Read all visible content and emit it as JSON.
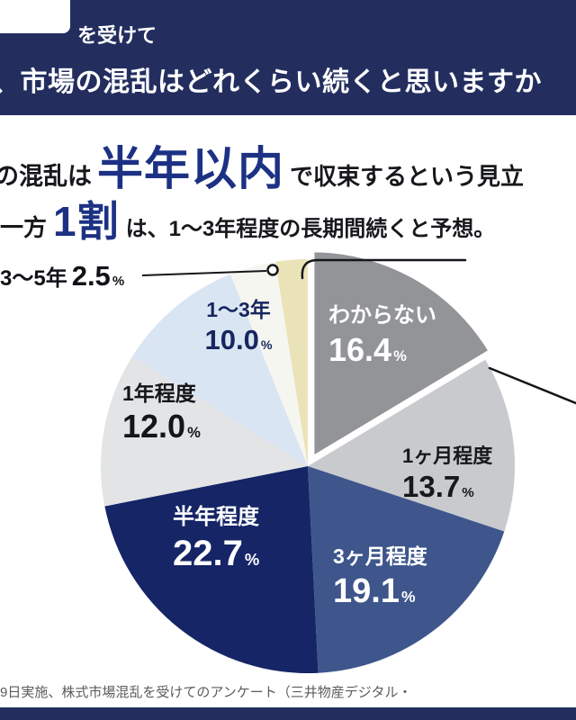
{
  "page": {
    "header": {
      "kicker": "を受けて",
      "title": "、市場の混乱はどれくらい続くと思いますか"
    },
    "headline": {
      "line1_pre": "の混乱は",
      "line1_em": "半年以内",
      "line1_post": "で収束するという見立",
      "line2_pre": "一方",
      "line2_em": "1割",
      "line2_post": "は、1〜3年程度の長期間続くと予想。"
    },
    "footnote": "9日実施、株式市場混乱を受けてのアンケート（三井物産デジタル・",
    "percent_sign": "%"
  },
  "chart_data": {
    "type": "pie",
    "title": "市場の混乱はどれくらい続くと思いますか",
    "unit": "%",
    "start_angle_deg_from_top": 0,
    "direction": "clockwise",
    "legend_position": "on-slice",
    "segments": [
      {
        "label": "わからない",
        "value": 16.4,
        "display": "16.4",
        "color": "#929497",
        "text_color": "#ffffff",
        "exploded": true
      },
      {
        "label": "1ヶ月程度",
        "value": 13.7,
        "display": "13.7",
        "color": "#c8cacd",
        "text_color": "#17181c",
        "exploded": false
      },
      {
        "label": "3ヶ月程度",
        "value": 19.1,
        "display": "19.1",
        "color": "#3e568c",
        "text_color": "#ffffff",
        "exploded": false
      },
      {
        "label": "半年程度",
        "value": 22.7,
        "display": "22.7",
        "color": "#152566",
        "text_color": "#ffffff",
        "exploded": false
      },
      {
        "label": "1年程度",
        "value": 12.0,
        "display": "12.0",
        "color": "#e3e4e6",
        "text_color": "#141518",
        "exploded": false
      },
      {
        "label": "1〜3年",
        "value": 10.0,
        "display": "10.0",
        "color": "#d9e5f2",
        "text_color": "#17265e",
        "exploded": false
      },
      {
        "label": "",
        "value": 3.6,
        "display": "",
        "color": "#f6f6f1",
        "text_color": "#17181c",
        "exploded": false
      },
      {
        "label": "3〜5年",
        "value": 2.5,
        "display": "2.5",
        "color": "#ebe3b8",
        "text_color": "#111217",
        "exploded": false
      }
    ]
  }
}
